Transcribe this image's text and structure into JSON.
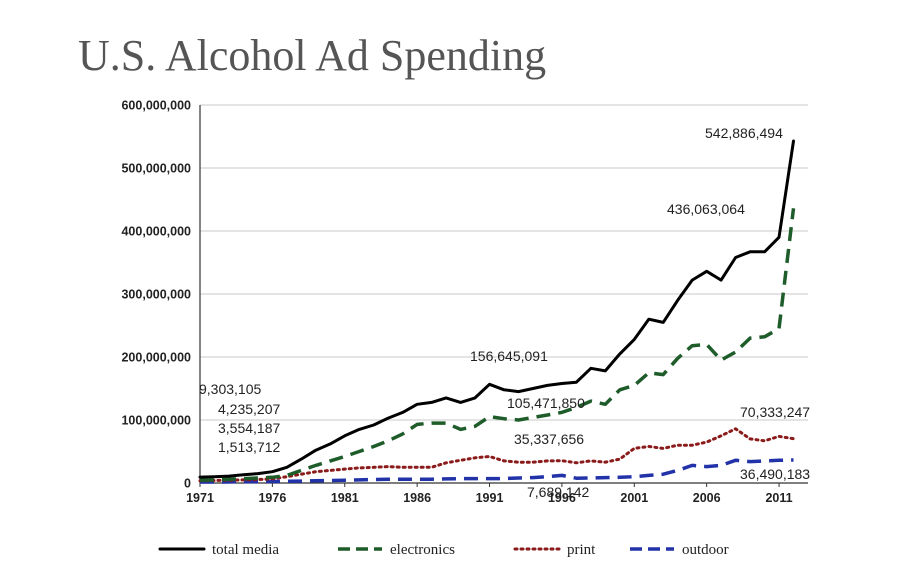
{
  "page": {
    "title": "U.S. Alcohol Ad Spending"
  },
  "chart_data": {
    "type": "line",
    "title": "U.S. Alcohol Ad Spending",
    "xlabel": "",
    "ylabel": "",
    "xlim": [
      1971,
      2013
    ],
    "ylim": [
      0,
      600000000
    ],
    "x_ticks": [
      1971,
      1976,
      1981,
      1986,
      1991,
      1996,
      2001,
      2006,
      2011
    ],
    "y_ticks": [
      0,
      100000000,
      200000000,
      300000000,
      400000000,
      500000000,
      600000000
    ],
    "y_tick_labels": [
      "0",
      "100,000,000",
      "200,000,000",
      "300,000,000",
      "400,000,000",
      "500,000,000",
      "600,000,000"
    ],
    "x": [
      1971,
      1972,
      1973,
      1974,
      1975,
      1976,
      1977,
      1978,
      1979,
      1980,
      1981,
      1982,
      1983,
      1984,
      1985,
      1986,
      1987,
      1988,
      1989,
      1990,
      1991,
      1992,
      1993,
      1994,
      1995,
      1996,
      1997,
      1998,
      1999,
      2000,
      2001,
      2002,
      2003,
      2004,
      2005,
      2006,
      2007,
      2008,
      2009,
      2010,
      2011,
      2012
    ],
    "series": [
      {
        "name": "total media",
        "color": "#000000",
        "style": "solid",
        "values": [
          9303105,
          10000000,
          11000000,
          13000000,
          15000000,
          18000000,
          25000000,
          38000000,
          52000000,
          62000000,
          75000000,
          85000000,
          92000000,
          103000000,
          112000000,
          125000000,
          128000000,
          135000000,
          128000000,
          135000000,
          156645091,
          148000000,
          145000000,
          150000000,
          155000000,
          158000000,
          160000000,
          182000000,
          178000000,
          205000000,
          228000000,
          260000000,
          255000000,
          290000000,
          322000000,
          336000000,
          322000000,
          358000000,
          367000000,
          367000000,
          390000000,
          542886494
        ]
      },
      {
        "name": "electronics",
        "color": "#1e5c2a",
        "style": "dashed",
        "values": [
          4235207,
          5000000,
          6000000,
          7000000,
          8000000,
          9000000,
          12000000,
          20000000,
          28000000,
          35000000,
          42000000,
          50000000,
          58000000,
          67000000,
          78000000,
          93000000,
          95000000,
          95000000,
          85000000,
          90000000,
          105471850,
          102000000,
          100000000,
          104000000,
          108000000,
          112000000,
          120000000,
          130000000,
          125000000,
          148000000,
          155000000,
          175000000,
          172000000,
          198000000,
          218000000,
          220000000,
          195000000,
          208000000,
          230000000,
          232000000,
          245000000,
          436063064
        ]
      },
      {
        "name": "print",
        "color": "#8b1a1a",
        "style": "dotted",
        "values": [
          3554187,
          4000000,
          4500000,
          5000000,
          5500000,
          6500000,
          10000000,
          14000000,
          18000000,
          20000000,
          22000000,
          24000000,
          25000000,
          26000000,
          25000000,
          25000000,
          25000000,
          32000000,
          36000000,
          40000000,
          42000000,
          35000000,
          33000000,
          33000000,
          35000000,
          35337656,
          32000000,
          35000000,
          33000000,
          38000000,
          55000000,
          58000000,
          55000000,
          60000000,
          60000000,
          65000000,
          75000000,
          86000000,
          70000000,
          67000000,
          74000000,
          70333247
        ]
      },
      {
        "name": "outdoor",
        "color": "#2233aa",
        "style": "dashed",
        "values": [
          1513712,
          1600000,
          1800000,
          2000000,
          2200000,
          2400000,
          2700000,
          3000000,
          3500000,
          4000000,
          4500000,
          5000000,
          5500000,
          6000000,
          6000000,
          6000000,
          6000000,
          6500000,
          7000000,
          7000000,
          7000000,
          7000000,
          8000000,
          8500000,
          10000000,
          12000000,
          7689142,
          8000000,
          8500000,
          9000000,
          10000000,
          12000000,
          14000000,
          20000000,
          28000000,
          26000000,
          28000000,
          36000000,
          34000000,
          35000000,
          36000000,
          36490183
        ]
      }
    ],
    "annotations": [
      {
        "text": "542,886,494"
      },
      {
        "text": "436,063,064"
      },
      {
        "text": "156,645,091"
      },
      {
        "text": "105,471,850"
      },
      {
        "text": "70,333,247"
      },
      {
        "text": "35,337,656"
      },
      {
        "text": "36,490,183"
      },
      {
        "text": "7,689,142"
      },
      {
        "text": "9,303,105"
      },
      {
        "text": "4,235,207"
      },
      {
        "text": "3,554,187"
      },
      {
        "text": "1,513,712"
      }
    ],
    "legend": {
      "placement": "bottom",
      "entries": [
        "total media",
        "electronics",
        "print",
        "outdoor"
      ]
    },
    "grid": true
  }
}
